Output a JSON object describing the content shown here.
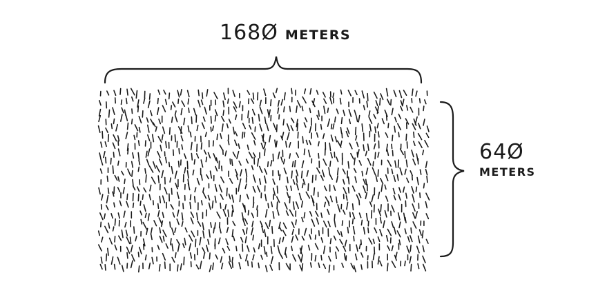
{
  "width_label": {
    "value": "168Ø",
    "unit": "METERS"
  },
  "height_label": {
    "value": "64Ø",
    "unit": "METERS"
  },
  "colors": {
    "ink": "#1a1a1a",
    "background": "#ffffff"
  }
}
